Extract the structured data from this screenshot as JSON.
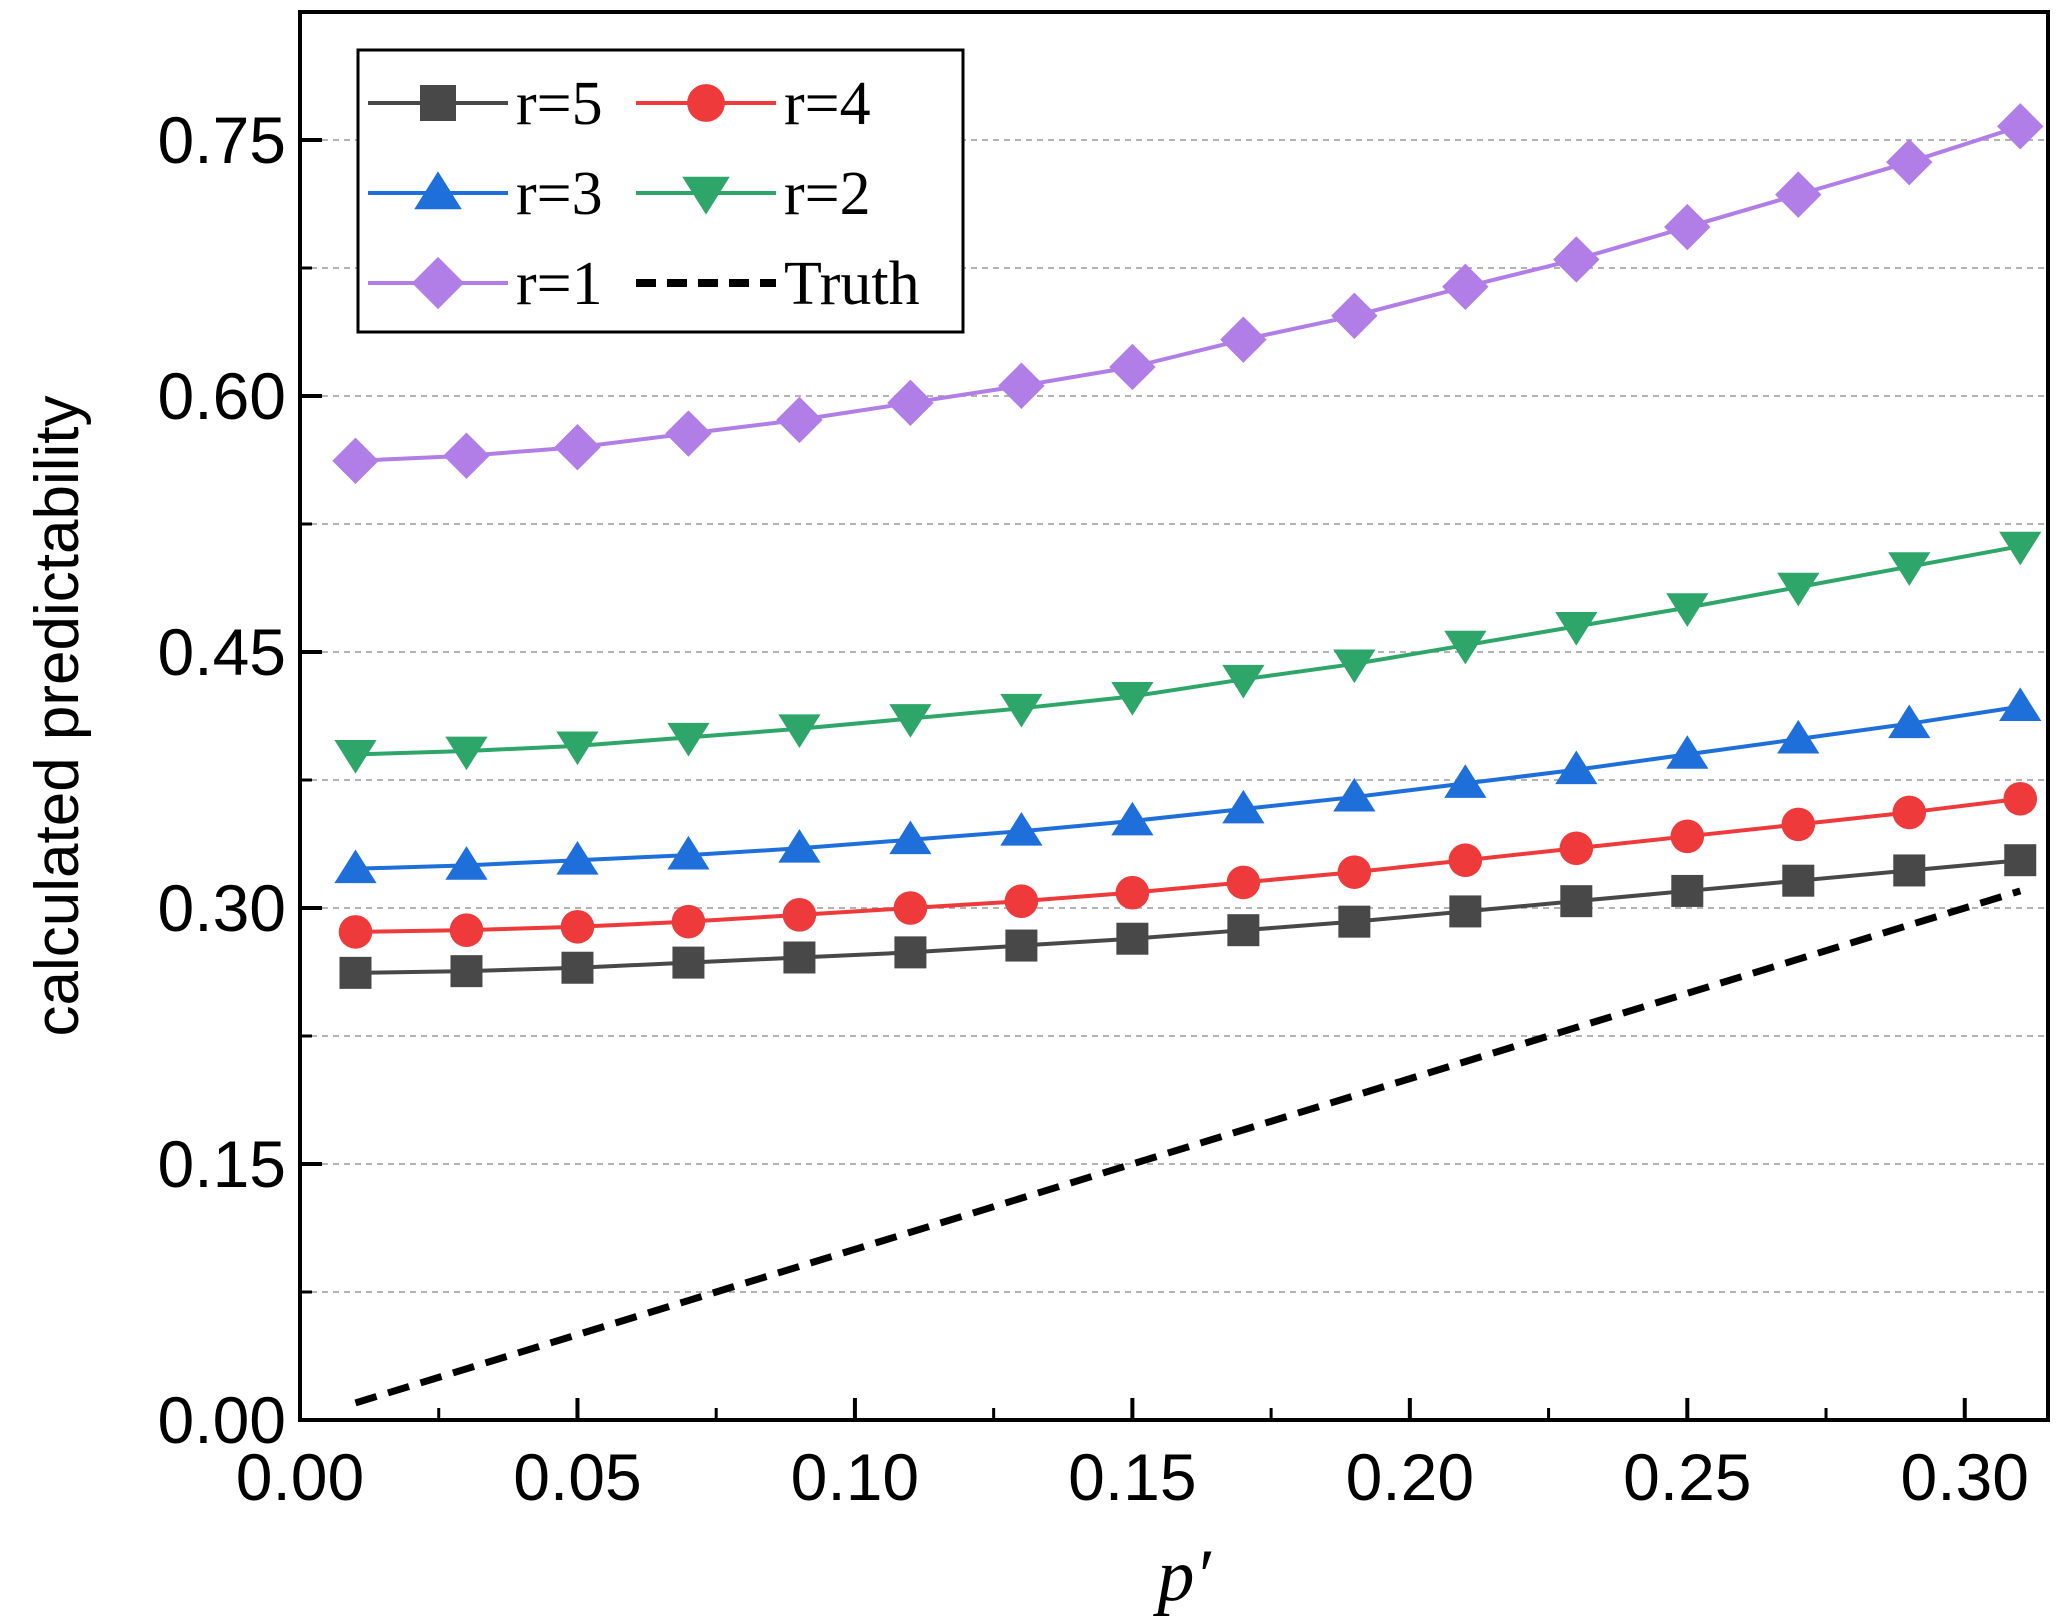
{
  "chart_data": {
    "type": "line",
    "title": "",
    "xlabel": "p′",
    "ylabel": "calculated predictability",
    "xlim": [
      0.0,
      0.315
    ],
    "ylim": [
      0.0,
      0.825
    ],
    "x_ticks": [
      "0.00",
      "0.05",
      "0.10",
      "0.15",
      "0.20",
      "0.25",
      "0.30"
    ],
    "x_tick_values": [
      0.0,
      0.05,
      0.1,
      0.15,
      0.2,
      0.25,
      0.3
    ],
    "y_ticks": [
      "0.00",
      "0.15",
      "0.30",
      "0.45",
      "0.60",
      "0.75"
    ],
    "y_tick_values": [
      0.0,
      0.15,
      0.3,
      0.45,
      0.6,
      0.75
    ],
    "gridlines_y": [
      0.075,
      0.15,
      0.225,
      0.3,
      0.375,
      0.45,
      0.525,
      0.6,
      0.675,
      0.75,
      0.825
    ],
    "grid": "horizontal dashed",
    "legend_position": "top-left",
    "x": [
      0.01,
      0.03,
      0.05,
      0.07,
      0.09,
      0.11,
      0.13,
      0.15,
      0.17,
      0.19,
      0.21,
      0.23,
      0.25,
      0.27,
      0.29,
      0.31
    ],
    "series": [
      {
        "name": "r=5",
        "color": "#484848",
        "marker": "square",
        "values": [
          0.262,
          0.263,
          0.265,
          0.268,
          0.271,
          0.274,
          0.278,
          0.282,
          0.287,
          0.292,
          0.298,
          0.304,
          0.31,
          0.316,
          0.322,
          0.328
        ]
      },
      {
        "name": "r=4",
        "color": "#ee3a3a",
        "marker": "circle",
        "values": [
          0.286,
          0.287,
          0.289,
          0.292,
          0.296,
          0.3,
          0.304,
          0.309,
          0.315,
          0.321,
          0.328,
          0.335,
          0.342,
          0.349,
          0.356,
          0.364
        ]
      },
      {
        "name": "r=3",
        "color": "#1f6fdb",
        "marker": "triangle-up",
        "values": [
          0.323,
          0.325,
          0.328,
          0.331,
          0.335,
          0.34,
          0.345,
          0.351,
          0.358,
          0.365,
          0.373,
          0.381,
          0.39,
          0.399,
          0.408,
          0.418
        ]
      },
      {
        "name": "r=2",
        "color": "#2ea66a",
        "marker": "triangle-down",
        "values": [
          0.39,
          0.392,
          0.395,
          0.4,
          0.405,
          0.411,
          0.417,
          0.424,
          0.434,
          0.443,
          0.454,
          0.465,
          0.476,
          0.488,
          0.5,
          0.512
        ]
      },
      {
        "name": "r=1",
        "color": "#b07ee6",
        "marker": "diamond",
        "values": [
          0.562,
          0.565,
          0.57,
          0.578,
          0.586,
          0.596,
          0.606,
          0.617,
          0.633,
          0.647,
          0.664,
          0.68,
          0.699,
          0.718,
          0.737,
          0.758
        ]
      },
      {
        "name": "Truth",
        "color": "#000000",
        "marker": "none",
        "dashed": true,
        "values": [
          0.01,
          0.03,
          0.05,
          0.07,
          0.09,
          0.11,
          0.13,
          0.15,
          0.17,
          0.19,
          0.21,
          0.23,
          0.25,
          0.27,
          0.29,
          0.31
        ]
      }
    ]
  }
}
